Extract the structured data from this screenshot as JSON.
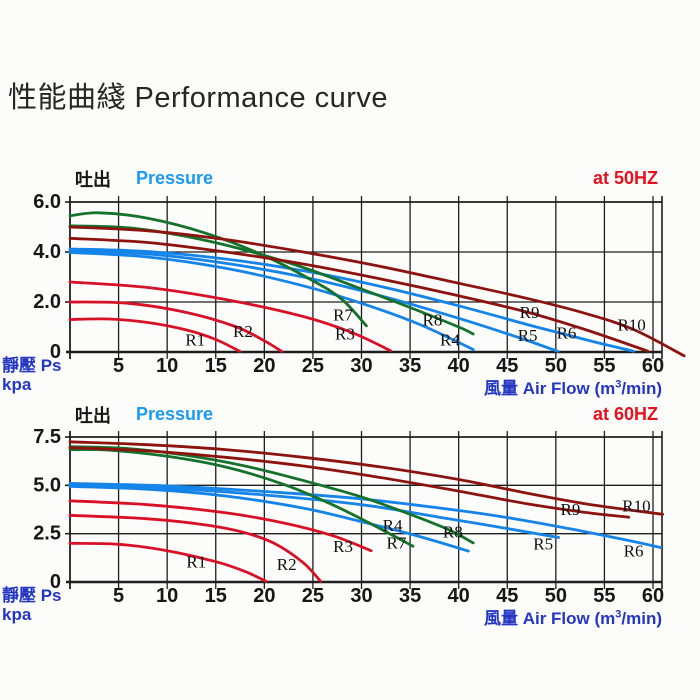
{
  "title": "性能曲綫 Performance curve",
  "colors": {
    "curve_red": "#d81126",
    "curve_blue": "#1584e8",
    "curve_green": "#15722b",
    "curve_maroon": "#8c130e",
    "axis": "#1e1e1e",
    "header_blue": "#1b9af2",
    "deep_blue": "#2336c4",
    "accent_red": "#e8101c"
  },
  "chart_data": {
    "type": "line",
    "charts": [
      {
        "id": "50hz",
        "pressure_cjk": "吐出",
        "pressure_label": "Pressure",
        "freq_label": "at 50HZ",
        "y_axis": {
          "max": 6.0,
          "ticks": [
            [
              0,
              "0"
            ],
            [
              2,
              "2.0"
            ],
            [
              4,
              "4.0"
            ],
            [
              6,
              "6.0"
            ]
          ],
          "unit_line1": "靜壓 Ps",
          "unit_line2": "kpa"
        },
        "x_axis": {
          "ticks": [
            5,
            10,
            15,
            20,
            25,
            30,
            35,
            40,
            45,
            50,
            55,
            60
          ],
          "caption_cjk": "風量",
          "caption_latin": "Air Flow (m",
          "caption_sup": "3",
          "caption_tail": "/min)"
        },
        "series": [
          {
            "name": "R1",
            "color": "curve_red",
            "label_at": [
              12.9,
              0.5
            ],
            "points": [
              [
                0,
                1.3
              ],
              [
                4,
                1.32
              ],
              [
                8,
                1.18
              ],
              [
                12,
                0.88
              ],
              [
                15,
                0.5
              ],
              [
                17.5,
                0.02
              ]
            ]
          },
          {
            "name": "R2",
            "color": "curve_red",
            "label_at": [
              17.8,
              0.85
            ],
            "points": [
              [
                0,
                2.0
              ],
              [
                6,
                1.95
              ],
              [
                12,
                1.58
              ],
              [
                17,
                1.02
              ],
              [
                20,
                0.45
              ],
              [
                21.8,
                0.02
              ]
            ]
          },
          {
            "name": "R3",
            "color": "curve_red",
            "label_at": [
              28.3,
              0.75
            ],
            "points": [
              [
                0,
                2.8
              ],
              [
                8,
                2.58
              ],
              [
                16,
                2.1
              ],
              [
                24,
                1.42
              ],
              [
                29,
                0.78
              ],
              [
                33,
                0.05
              ]
            ]
          },
          {
            "name": "R4",
            "color": "curve_blue",
            "label_at": [
              39.1,
              0.5
            ],
            "points": [
              [
                0,
                3.98
              ],
              [
                8,
                3.8
              ],
              [
                16,
                3.35
              ],
              [
                24,
                2.65
              ],
              [
                30,
                1.95
              ],
              [
                36,
                1.1
              ],
              [
                41.5,
                0.1
              ]
            ]
          },
          {
            "name": "R5",
            "color": "curve_blue",
            "label_at": [
              47.1,
              0.68
            ],
            "points": [
              [
                0,
                4.05
              ],
              [
                8,
                3.92
              ],
              [
                16,
                3.55
              ],
              [
                24,
                3.0
              ],
              [
                32,
                2.25
              ],
              [
                40,
                1.35
              ],
              [
                46,
                0.6
              ],
              [
                50.2,
                0.03
              ]
            ]
          },
          {
            "name": "R6",
            "color": "curve_blue",
            "label_at": [
              51.1,
              0.78
            ],
            "points": [
              [
                0,
                4.12
              ],
              [
                8,
                4.02
              ],
              [
                16,
                3.72
              ],
              [
                24,
                3.25
              ],
              [
                32,
                2.62
              ],
              [
                40,
                1.85
              ],
              [
                48,
                1.0
              ],
              [
                54,
                0.4
              ],
              [
                58,
                0.03
              ]
            ]
          },
          {
            "name": "R7",
            "color": "curve_green",
            "label_at": [
              28.1,
              1.5
            ],
            "points": [
              [
                0,
                5.45
              ],
              [
                3,
                5.57
              ],
              [
                8,
                5.35
              ],
              [
                14,
                4.75
              ],
              [
                20,
                3.85
              ],
              [
                25,
                2.85
              ],
              [
                28,
                2.1
              ],
              [
                30.5,
                1.05
              ]
            ]
          },
          {
            "name": "R8",
            "color": "curve_green",
            "label_at": [
              37.3,
              1.3
            ],
            "points": [
              [
                0,
                5.05
              ],
              [
                6,
                4.97
              ],
              [
                12,
                4.62
              ],
              [
                18,
                4.08
              ],
              [
                24,
                3.38
              ],
              [
                30,
                2.52
              ],
              [
                35,
                1.78
              ],
              [
                40,
                1.0
              ],
              [
                41.5,
                0.72
              ]
            ]
          },
          {
            "name": "R9",
            "color": "curve_maroon",
            "label_at": [
              47.3,
              1.6
            ],
            "points": [
              [
                0,
                4.55
              ],
              [
                8,
                4.38
              ],
              [
                16,
                4.0
              ],
              [
                24,
                3.52
              ],
              [
                32,
                2.92
              ],
              [
                40,
                2.25
              ],
              [
                47,
                1.6
              ],
              [
                53,
                0.9
              ],
              [
                59.5,
                0.03
              ]
            ]
          },
          {
            "name": "R10",
            "color": "curve_maroon",
            "label_at": [
              57.8,
              1.1
            ],
            "points": [
              [
                0,
                5.0
              ],
              [
                8,
                4.85
              ],
              [
                16,
                4.5
              ],
              [
                24,
                4.0
              ],
              [
                32,
                3.42
              ],
              [
                40,
                2.75
              ],
              [
                47,
                2.15
              ],
              [
                53,
                1.55
              ],
              [
                58,
                0.9
              ],
              [
                63.2,
                -0.15
              ]
            ]
          }
        ]
      },
      {
        "id": "60hz",
        "pressure_cjk": "吐出",
        "pressure_label": "Pressure",
        "freq_label": "at 60HZ",
        "y_axis": {
          "max": 7.5,
          "ticks": [
            [
              0,
              "0"
            ],
            [
              2.5,
              "2.5"
            ],
            [
              5,
              "5.0"
            ],
            [
              7.5,
              "7.5"
            ]
          ],
          "unit_line1": "靜壓 Ps",
          "unit_line2": "kpa"
        },
        "x_axis": {
          "ticks": [
            5,
            10,
            15,
            20,
            25,
            30,
            35,
            40,
            45,
            50,
            55,
            60
          ],
          "caption_cjk": "風量",
          "caption_latin": "Air Flow (m",
          "caption_sup": "3",
          "caption_tail": "/min)"
        },
        "series": [
          {
            "name": "R1",
            "color": "curve_red",
            "label_at": [
              13,
              1.05
            ],
            "points": [
              [
                0,
                2.0
              ],
              [
                5,
                1.95
              ],
              [
                10,
                1.62
              ],
              [
                15,
                1.05
              ],
              [
                18,
                0.55
              ],
              [
                20.2,
                0.03
              ]
            ]
          },
          {
            "name": "R2",
            "color": "curve_red",
            "label_at": [
              22.3,
              0.92
            ],
            "points": [
              [
                0,
                3.45
              ],
              [
                8,
                3.27
              ],
              [
                14,
                2.95
              ],
              [
                18,
                2.55
              ],
              [
                21,
                2.0
              ],
              [
                24,
                1.0
              ],
              [
                25.8,
                0.03
              ]
            ]
          },
          {
            "name": "R3",
            "color": "curve_red",
            "label_at": [
              28.1,
              1.85
            ],
            "points": [
              [
                0,
                4.2
              ],
              [
                8,
                4.0
              ],
              [
                16,
                3.58
              ],
              [
                22,
                3.05
              ],
              [
                27,
                2.4
              ],
              [
                31,
                1.62
              ]
            ]
          },
          {
            "name": "R4",
            "color": "curve_blue",
            "label_at": [
              33.2,
              2.95
            ],
            "points": [
              [
                0,
                4.95
              ],
              [
                8,
                4.8
              ],
              [
                16,
                4.45
              ],
              [
                24,
                3.82
              ],
              [
                30,
                3.12
              ],
              [
                36,
                2.35
              ],
              [
                41,
                1.6
              ]
            ]
          },
          {
            "name": "R5",
            "color": "curve_blue",
            "label_at": [
              48.7,
              1.98
            ],
            "points": [
              [
                0,
                5.0
              ],
              [
                10,
                4.85
              ],
              [
                20,
                4.5
              ],
              [
                30,
                4.0
              ],
              [
                38,
                3.35
              ],
              [
                44,
                2.85
              ],
              [
                50.3,
                2.3
              ]
            ]
          },
          {
            "name": "R6",
            "color": "curve_blue",
            "label_at": [
              58,
              1.62
            ],
            "points": [
              [
                0,
                5.1
              ],
              [
                10,
                4.97
              ],
              [
                20,
                4.68
              ],
              [
                30,
                4.3
              ],
              [
                40,
                3.7
              ],
              [
                46,
                3.25
              ],
              [
                52,
                2.7
              ],
              [
                57,
                2.2
              ],
              [
                60.8,
                1.78
              ]
            ]
          },
          {
            "name": "R7",
            "color": "curve_green",
            "label_at": [
              33.6,
              2.05
            ],
            "points": [
              [
                0,
                6.85
              ],
              [
                4,
                6.82
              ],
              [
                10,
                6.5
              ],
              [
                16,
                5.95
              ],
              [
                22,
                5.05
              ],
              [
                27,
                4.0
              ],
              [
                31,
                3.0
              ],
              [
                35.3,
                1.85
              ]
            ]
          },
          {
            "name": "R8",
            "color": "curve_green",
            "label_at": [
              39.4,
              2.62
            ],
            "points": [
              [
                0,
                7.0
              ],
              [
                6,
                6.9
              ],
              [
                12,
                6.55
              ],
              [
                18,
                6.0
              ],
              [
                24,
                5.25
              ],
              [
                30,
                4.4
              ],
              [
                35,
                3.5
              ],
              [
                39,
                2.7
              ],
              [
                41.5,
                2.02
              ]
            ]
          },
          {
            "name": "R9",
            "color": "curve_maroon",
            "label_at": [
              51.5,
              3.78
            ],
            "points": [
              [
                0,
                6.95
              ],
              [
                8,
                6.78
              ],
              [
                16,
                6.45
              ],
              [
                24,
                6.0
              ],
              [
                32,
                5.4
              ],
              [
                40,
                4.7
              ],
              [
                47,
                4.05
              ],
              [
                53,
                3.6
              ],
              [
                57.5,
                3.35
              ]
            ]
          },
          {
            "name": "R10",
            "color": "curve_maroon",
            "label_at": [
              58.3,
              3.95
            ],
            "points": [
              [
                0,
                7.25
              ],
              [
                8,
                7.1
              ],
              [
                16,
                6.85
              ],
              [
                24,
                6.45
              ],
              [
                32,
                5.95
              ],
              [
                40,
                5.3
              ],
              [
                47,
                4.6
              ],
              [
                53,
                4.05
              ],
              [
                58,
                3.7
              ],
              [
                61,
                3.5
              ]
            ]
          }
        ]
      }
    ]
  }
}
